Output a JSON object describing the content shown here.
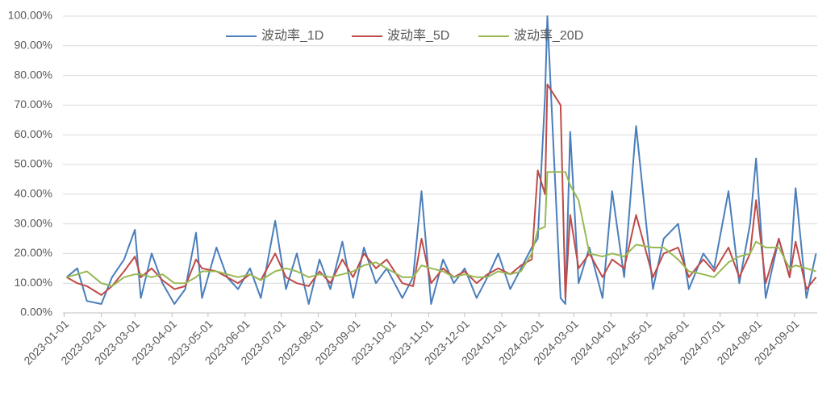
{
  "chart_data": {
    "type": "line",
    "x": [
      "2023-01-03",
      "2023-01-12",
      "2023-01-20",
      "2023-02-01",
      "2023-02-10",
      "2023-02-20",
      "2023-03-01",
      "2023-03-06",
      "2023-03-15",
      "2023-03-24",
      "2023-04-03",
      "2023-04-12",
      "2023-04-21",
      "2023-04-26",
      "2023-05-08",
      "2023-05-17",
      "2023-05-26",
      "2023-06-05",
      "2023-06-14",
      "2023-06-26",
      "2023-07-05",
      "2023-07-14",
      "2023-07-24",
      "2023-08-02",
      "2023-08-11",
      "2023-08-21",
      "2023-08-30",
      "2023-09-08",
      "2023-09-18",
      "2023-09-27",
      "2023-10-10",
      "2023-10-19",
      "2023-10-26",
      "2023-11-03",
      "2023-11-13",
      "2023-11-22",
      "2023-12-01",
      "2023-12-11",
      "2023-12-20",
      "2023-12-29",
      "2024-01-08",
      "2024-01-17",
      "2024-01-26",
      "2024-01-31",
      "2024-02-06",
      "2024-02-08",
      "2024-02-19",
      "2024-02-23",
      "2024-02-27",
      "2024-03-05",
      "2024-03-14",
      "2024-03-25",
      "2024-04-02",
      "2024-04-12",
      "2024-04-22",
      "2024-05-06",
      "2024-05-15",
      "2024-05-27",
      "2024-06-05",
      "2024-06-17",
      "2024-06-26",
      "2024-07-08",
      "2024-07-17",
      "2024-07-26",
      "2024-07-31",
      "2024-08-08",
      "2024-08-19",
      "2024-08-28",
      "2024-09-02",
      "2024-09-11",
      "2024-09-19"
    ],
    "series": [
      {
        "name": "波动率_1D",
        "color": "#4a7ebb",
        "values": [
          12,
          15,
          4,
          3,
          12,
          18,
          28,
          5,
          20,
          10,
          3,
          8,
          27,
          5,
          22,
          12,
          8,
          15,
          5,
          31,
          8,
          20,
          3,
          18,
          8,
          24,
          5,
          22,
          10,
          15,
          5,
          12,
          41,
          3,
          18,
          10,
          15,
          5,
          12,
          20,
          8,
          15,
          22,
          25,
          73,
          100,
          5,
          3,
          61,
          10,
          22,
          5,
          41,
          12,
          63,
          8,
          25,
          30,
          8,
          20,
          15,
          41,
          10,
          30,
          52,
          5,
          25,
          12,
          42,
          5,
          20
        ]
      },
      {
        "name": "波动率_5D",
        "color": "#be4b48",
        "values": [
          12,
          10,
          9,
          6,
          9,
          14,
          19,
          12,
          15,
          11,
          8,
          9,
          18,
          15,
          14,
          12,
          10,
          13,
          11,
          20,
          12,
          10,
          9,
          14,
          10,
          18,
          12,
          20,
          15,
          18,
          10,
          9,
          25,
          10,
          15,
          12,
          14,
          10,
          13,
          15,
          13,
          16,
          18,
          48,
          40,
          77,
          70,
          5,
          33,
          15,
          20,
          12,
          18,
          15,
          33,
          12,
          20,
          22,
          12,
          18,
          14,
          22,
          12,
          20,
          38,
          10,
          25,
          12,
          24,
          8,
          12
        ]
      },
      {
        "name": "波动率_20D",
        "color": "#98b954",
        "values": [
          12,
          13,
          14,
          10,
          9,
          12,
          13,
          13,
          12,
          13,
          10,
          10,
          12,
          14,
          14,
          13,
          12,
          13,
          11,
          14,
          15,
          14,
          12,
          13,
          12,
          13,
          14,
          16,
          17,
          15,
          12,
          12,
          16,
          15,
          14,
          12,
          13,
          12,
          12,
          14,
          13,
          14,
          20,
          28,
          29,
          47.5,
          47.5,
          47.5,
          43,
          38,
          20,
          19,
          20,
          19,
          23,
          22,
          22,
          18,
          14,
          13,
          12,
          17,
          19,
          20,
          24,
          22,
          22,
          15,
          16,
          15,
          14
        ]
      }
    ],
    "xlim": [
      "2022-12-31",
      "2024-09-20"
    ],
    "xticks": [
      "2023-01-01",
      "2023-02-01",
      "2023-03-01",
      "2023-04-01",
      "2023-05-01",
      "2023-06-01",
      "2023-07-01",
      "2023-08-01",
      "2023-09-01",
      "2023-10-01",
      "2023-11-01",
      "2023-12-01",
      "2024-01-01",
      "2024-02-01",
      "2024-03-01",
      "2024-04-01",
      "2024-05-01",
      "2024-06-01",
      "2024-07-01",
      "2024-08-01",
      "2024-09-01"
    ],
    "ylim": [
      0,
      100
    ],
    "yticks": [
      {
        "value": 0,
        "label": "0.00%"
      },
      {
        "value": 10,
        "label": "10.00%"
      },
      {
        "value": 20,
        "label": "20.00%"
      },
      {
        "value": 30,
        "label": "30.00%"
      },
      {
        "value": 40,
        "label": "40.00%"
      },
      {
        "value": 50,
        "label": "50.00%"
      },
      {
        "value": 60,
        "label": "60.00%"
      },
      {
        "value": 70,
        "label": "70.00%"
      },
      {
        "value": 80,
        "label": "80.00%"
      },
      {
        "value": 90,
        "label": "90.00%"
      },
      {
        "value": 100,
        "label": "100.00%"
      }
    ],
    "grid": true,
    "legend": "top"
  }
}
